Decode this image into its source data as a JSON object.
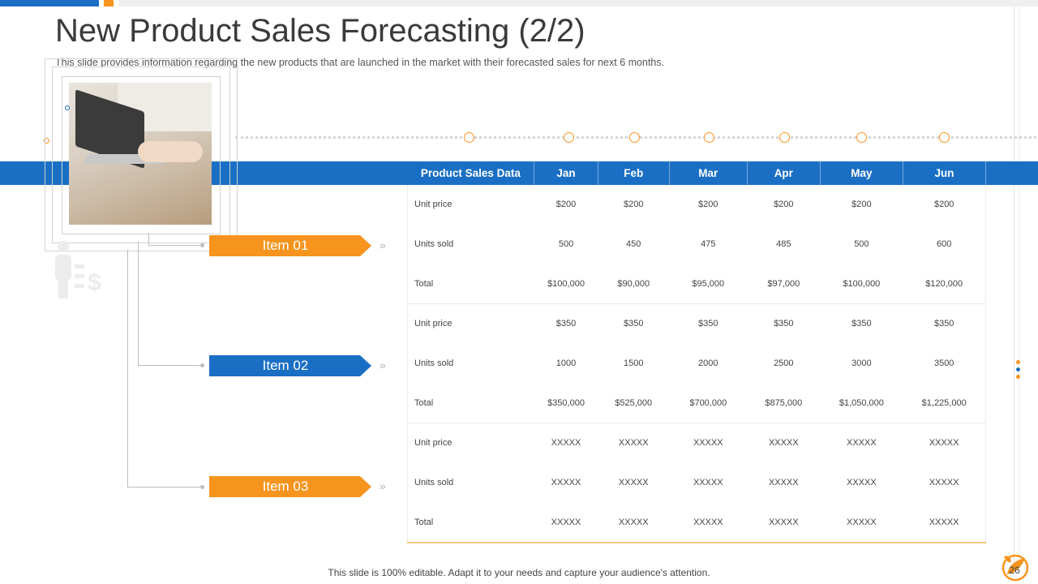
{
  "slide": {
    "title": "New Product Sales Forecasting (2/2)",
    "subtitle": "This slide provides information regarding the new products that are launched in the market with their forecasted sales for next 6 months.",
    "footer": "This slide is 100% editable. Adapt it to your needs and capture your audience's attention.",
    "page_number": "26"
  },
  "colors": {
    "blue": "#1a6fc4",
    "orange": "#f7941d"
  },
  "items": [
    {
      "label": "Item 01",
      "color": "#f7941d"
    },
    {
      "label": "Item 02",
      "color": "#1a6fc4"
    },
    {
      "label": "Item 03",
      "color": "#f7941d"
    }
  ],
  "table": {
    "headers": [
      "Product Sales Data",
      "Jan",
      "Feb",
      "Mar",
      "Apr",
      "May",
      "Jun"
    ],
    "rows": [
      [
        "Unit price",
        "$200",
        "$200",
        "$200",
        "$200",
        "$200",
        "$200"
      ],
      [
        "Units sold",
        "500",
        "450",
        "475",
        "485",
        "500",
        "600"
      ],
      [
        "Total",
        "$100,000",
        "$90,000",
        "$95,000",
        "$97,000",
        "$100,000",
        "$120,000"
      ],
      [
        "Unit price",
        "$350",
        "$350",
        "$350",
        "$350",
        "$350",
        "$350"
      ],
      [
        "Units sold",
        "1000",
        "1500",
        "2000",
        "2500",
        "3000",
        "3500"
      ],
      [
        "Total",
        "$350,000",
        "$525,000",
        "$700,000",
        "$875,000",
        "$1,050,000",
        "$1,225,000"
      ],
      [
        "Unit price",
        "XXXXX",
        "XXXXX",
        "XXXXX",
        "XXXXX",
        "XXXXX",
        "XXXXX"
      ],
      [
        "Units sold",
        "XXXXX",
        "XXXXX",
        "XXXXX",
        "XXXXX",
        "XXXXX",
        "XXXXX"
      ],
      [
        "Total",
        "XXXXX",
        "XXXXX",
        "XXXXX",
        "XXXXX",
        "XXXXX",
        "XXXXX"
      ]
    ]
  },
  "icons": {
    "photo": "laptop-photo",
    "chevrons": "double-chevron-right-icon",
    "ghost": "person-dollar-icon",
    "logo": "leaf-logo-icon"
  }
}
